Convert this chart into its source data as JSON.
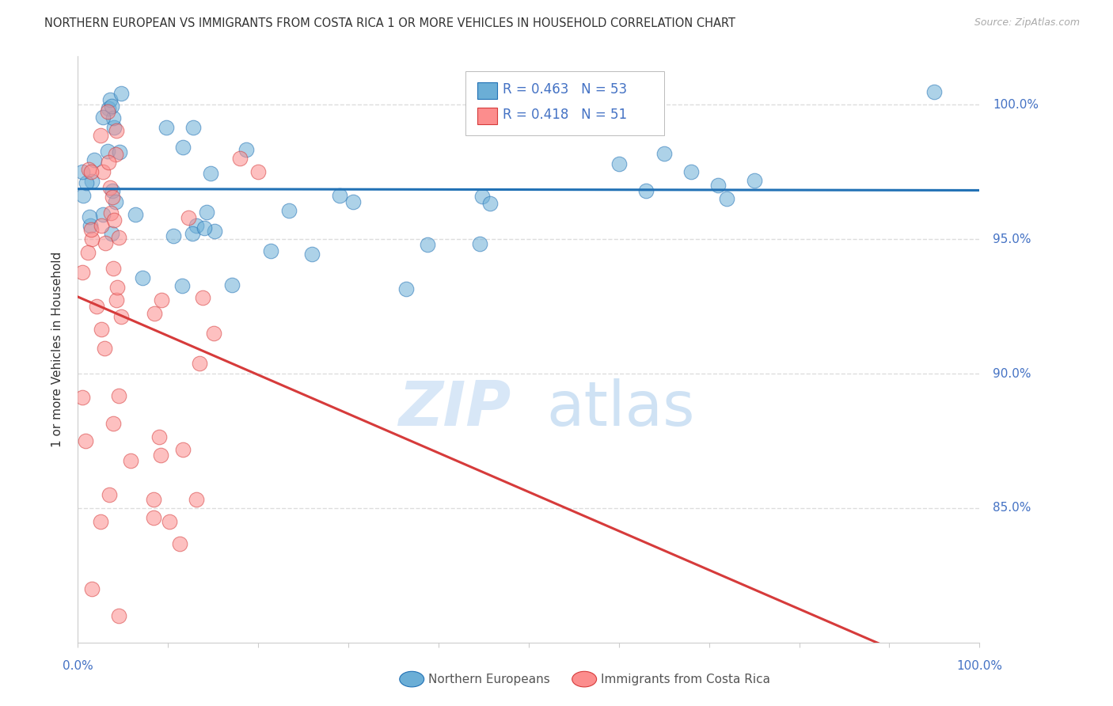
{
  "title": "NORTHERN EUROPEAN VS IMMIGRANTS FROM COSTA RICA 1 OR MORE VEHICLES IN HOUSEHOLD CORRELATION CHART",
  "source": "Source: ZipAtlas.com",
  "ylabel": "1 or more Vehicles in Household",
  "ytick_labels": [
    "85.0%",
    "90.0%",
    "95.0%",
    "100.0%"
  ],
  "ytick_values": [
    85.0,
    90.0,
    95.0,
    100.0
  ],
  "xlim": [
    0.0,
    100.0
  ],
  "ylim": [
    80.0,
    101.8
  ],
  "blue_R": 0.463,
  "blue_N": 53,
  "pink_R": 0.418,
  "pink_N": 51,
  "legend_blue": "Northern Europeans",
  "legend_pink": "Immigrants from Costa Rica",
  "blue_color": "#6baed6",
  "pink_color": "#fc8d8d",
  "blue_line_color": "#2171b5",
  "pink_line_color": "#d63b3b",
  "watermark_zip": "ZIP",
  "watermark_atlas": "atlas",
  "background_color": "#ffffff",
  "grid_color": "#dddddd"
}
